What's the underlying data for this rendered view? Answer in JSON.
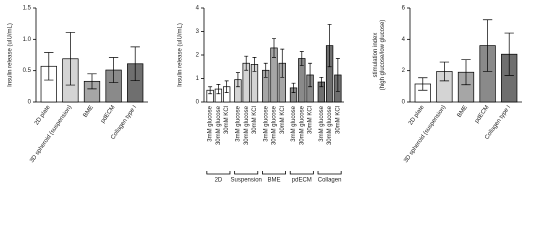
{
  "chart_data": [
    {
      "type": "bar",
      "ylabel": [
        "Insulin release (uIU/mL)"
      ],
      "categories": [
        "2D plate",
        "3D spheroid (suspension)",
        "BME",
        "pdECM",
        "Collagen type I"
      ],
      "values": [
        0.57,
        0.69,
        0.33,
        0.51,
        0.61
      ],
      "errors": [
        0.22,
        0.42,
        0.12,
        0.2,
        0.27
      ],
      "colors": [
        "#ffffff",
        "#d4d4d4",
        "#a6a6a6",
        "#8a8a8a",
        "#6f6f6f"
      ],
      "ylim": [
        0,
        1.5
      ],
      "yticks": [
        0,
        0.5,
        {
          "value": 1,
          "label": "1.0"
        },
        1.5
      ]
    },
    {
      "type": "bar",
      "ylabel": [
        "Insulin release (uIU/mL)"
      ],
      "categories": [
        "3mM glucose",
        "30mM glucose",
        "30mM KCl"
      ],
      "groups": [
        {
          "name": "2D",
          "color": "#ffffff",
          "values": [
            0.5,
            0.55,
            0.65
          ],
          "errors": [
            0.15,
            0.2,
            0.25
          ]
        },
        {
          "name": "Suspension",
          "color": "#d4d4d4",
          "values": [
            0.95,
            1.65,
            1.6
          ],
          "errors": [
            0.3,
            0.3,
            0.3
          ]
        },
        {
          "name": "BME",
          "color": "#a6a6a6",
          "values": [
            1.35,
            2.3,
            1.65
          ],
          "errors": [
            0.3,
            0.4,
            0.6
          ]
        },
        {
          "name": "pdECM",
          "color": "#8a8a8a",
          "values": [
            0.6,
            1.85,
            1.15
          ],
          "errors": [
            0.2,
            0.3,
            0.5
          ]
        },
        {
          "name": "Collagen",
          "color": "#6f6f6f",
          "values": [
            0.85,
            2.4,
            1.15
          ],
          "errors": [
            0.2,
            0.9,
            0.7
          ]
        }
      ],
      "ylim": [
        0,
        4
      ],
      "yticks": [
        0,
        1,
        2,
        3,
        4
      ]
    },
    {
      "type": "bar",
      "ylabel": [
        "stimulation index",
        "(high glucose/low glucose)"
      ],
      "categories": [
        "2D plate",
        "3D spheroid (suspension)",
        "BME",
        "pdECM",
        "Collagen type I"
      ],
      "values": [
        1.15,
        1.95,
        1.9,
        3.6,
        3.05
      ],
      "errors": [
        0.4,
        0.6,
        0.8,
        1.65,
        1.35
      ],
      "colors": [
        "#ffffff",
        "#d4d4d4",
        "#a6a6a6",
        "#8a8a8a",
        "#6f6f6f"
      ],
      "ylim": [
        0,
        6
      ],
      "yticks": [
        0,
        2,
        4,
        6
      ]
    }
  ]
}
